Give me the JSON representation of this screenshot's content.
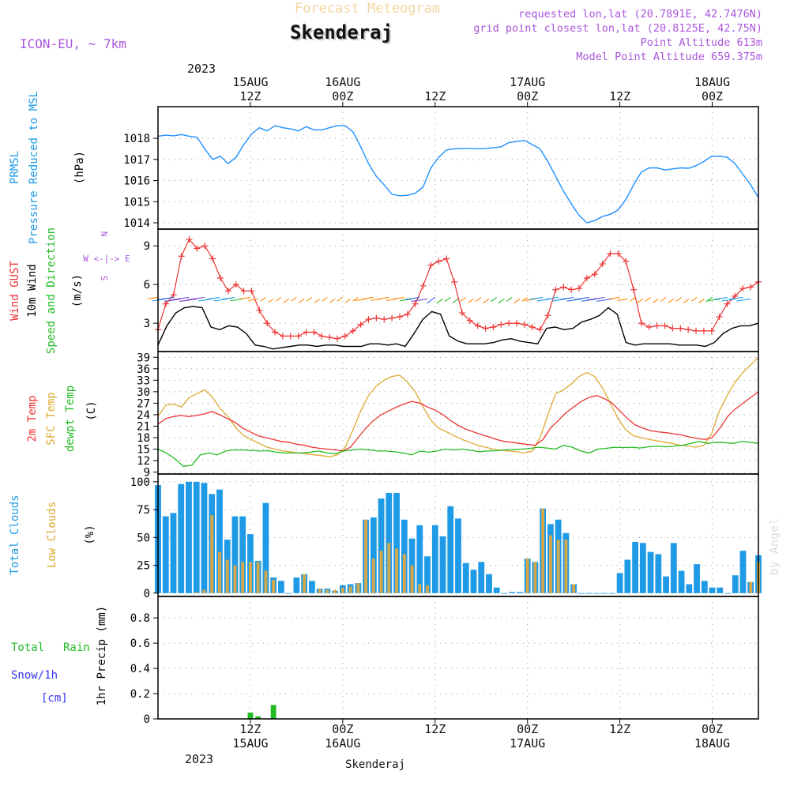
{
  "header": {
    "title": "Skenderaj",
    "faded_title": "Forecast Meteogram",
    "model": "ICON-EU, ~ 7km",
    "requested": "requested lon,lat (20.7891E, 42.7476N)",
    "grid_point": "grid point closest lon,lat (20.8125E, 42.75N)",
    "point_altitude": "Point Altitude 613m",
    "model_altitude": "Model Point Altitude 659.375m"
  },
  "footer": {
    "station": "Skenderaj",
    "watermark": "by Angel"
  },
  "time_axis": {
    "year": "2023",
    "ticks": [
      {
        "hour": 12,
        "top": [
          "15AUG",
          "12Z"
        ],
        "bottom": [
          "12Z",
          "15AUG"
        ]
      },
      {
        "hour": 24,
        "top": [
          "16AUG",
          "00Z"
        ],
        "bottom": [
          "00Z",
          "16AUG"
        ]
      },
      {
        "hour": 36,
        "top": [
          "12Z"
        ],
        "bottom": [
          "12Z"
        ]
      },
      {
        "hour": 48,
        "top": [
          "17AUG",
          "00Z"
        ],
        "bottom": [
          "00Z",
          "17AUG"
        ]
      },
      {
        "hour": 60,
        "top": [
          "12Z"
        ],
        "bottom": [
          "12Z"
        ]
      },
      {
        "hour": 72,
        "top": [
          "18AUG",
          "00Z"
        ],
        "bottom": [
          "00Z",
          "18AUG"
        ]
      }
    ]
  },
  "colors": {
    "pressure": "#1e90ff",
    "gust": "#ee3333",
    "wind": "#000000",
    "direction": "#22bb22",
    "temp2m": "#ee3333",
    "sfctemp": "#ddaa33",
    "dewpt": "#22bb22",
    "total_clouds": "#1e9ae6",
    "low_clouds": "#d4a84a",
    "rain": "#22bb22",
    "snow": "#3333ee",
    "header_meta": "#aa55dd"
  },
  "panels": {
    "pressure": {
      "labels": [
        "PRMSL",
        "Pressure Reduced to MSL"
      ],
      "unit": "(hPa)"
    },
    "wind": {
      "labels": [
        "Wind GUST",
        "10m Wind",
        "Speed and Direction"
      ],
      "unit": "(m/s)",
      "compass": "W <-|-> E",
      "compass_n": "N",
      "compass_s": "S"
    },
    "temp": {
      "labels": [
        "2m Temp",
        "SFC Temp",
        "dewpt Temp"
      ],
      "unit": "(C)"
    },
    "clouds": {
      "labels": [
        "Total Clouds",
        "Low Clouds"
      ],
      "unit": "(%)"
    },
    "precip": {
      "labels": [
        "Total",
        "Rain",
        "Snow/1h",
        "[cm]"
      ],
      "unit": "1hr Precip (mm)"
    }
  },
  "chart_data": [
    {
      "type": "line",
      "title": "PRMSL Pressure Reduced to MSL",
      "ylabel": "(hPa)",
      "ylim": [
        1013.7,
        1019.5
      ],
      "yticks": [
        1014,
        1015,
        1016,
        1017,
        1018
      ],
      "x_hours": [
        0,
        1,
        2,
        3,
        4,
        5,
        6,
        7,
        8,
        9,
        10,
        11,
        12,
        13,
        14,
        15,
        16,
        17,
        18,
        19,
        20,
        21,
        22,
        23,
        24,
        25,
        26,
        27,
        28,
        29,
        30,
        31,
        32,
        33,
        34,
        35,
        36,
        37,
        38,
        39,
        40,
        41,
        42,
        43,
        44,
        45,
        46,
        47,
        48,
        49,
        50,
        51,
        52,
        53,
        54,
        55,
        56,
        57,
        58,
        59,
        60,
        61,
        62,
        63,
        64,
        65,
        66,
        67,
        68,
        69,
        70,
        71,
        72,
        73,
        74,
        75,
        76,
        77,
        78,
        79,
        80,
        81,
        82,
        83,
        84,
        85,
        86,
        87,
        88,
        89,
        90,
        91,
        92,
        93,
        94,
        95,
        96
      ],
      "series": [
        {
          "name": "PRMSL",
          "values": [
            1018.1,
            1018.15,
            1018.12,
            1018.18,
            1018.1,
            1018.05,
            1017.5,
            1017.0,
            1017.15,
            1016.8,
            1017.1,
            1017.7,
            1018.2,
            1018.5,
            1018.35,
            1018.6,
            1018.5,
            1018.45,
            1018.35,
            1018.55,
            1018.4,
            1018.4,
            1018.5,
            1018.6,
            1018.6,
            1018.3,
            1017.6,
            1016.8,
            1016.2,
            1015.8,
            1015.35,
            1015.28,
            1015.3,
            1015.4,
            1015.7,
            1016.6,
            1017.1,
            1017.45,
            1017.5,
            1017.52,
            1017.52,
            1017.5,
            1017.52,
            1017.55,
            1017.6,
            1017.8,
            1017.85,
            1017.9,
            1017.7,
            1017.5,
            1016.9,
            1016.2,
            1015.5,
            1014.9,
            1014.35,
            1014.0,
            1014.1,
            1014.3,
            1014.4,
            1014.6,
            1015.1,
            1015.8,
            1016.4,
            1016.6,
            1016.6,
            1016.5,
            1016.55,
            1016.6,
            1016.58,
            1016.7,
            1016.9,
            1017.15,
            1017.15,
            1017.1,
            1016.8,
            1016.3,
            1015.8,
            1015.2
          ]
        }
      ]
    },
    {
      "type": "line",
      "title": "Wind GUST / 10m Wind Speed and Direction",
      "ylabel": "(m/s)",
      "ylim": [
        0.8,
        10.3
      ],
      "yticks": [
        3,
        6,
        9
      ],
      "series": [
        {
          "name": "Wind GUST",
          "values": [
            2.5,
            4.5,
            5.2,
            8.2,
            9.5,
            8.8,
            9.0,
            8.0,
            6.5,
            5.5,
            6.0,
            5.5,
            5.5,
            4.0,
            3.0,
            2.3,
            2.0,
            2.0,
            2.0,
            2.3,
            2.3,
            2.0,
            1.9,
            1.8,
            2.0,
            2.4,
            2.9,
            3.3,
            3.4,
            3.3,
            3.4,
            3.5,
            3.7,
            4.5,
            5.9,
            7.5,
            7.8,
            8.0,
            6.2,
            3.8,
            3.2,
            2.8,
            2.6,
            2.7,
            2.9,
            3.0,
            3.0,
            2.9,
            2.7,
            2.5,
            3.6,
            5.6,
            5.8,
            5.6,
            5.7,
            6.5,
            6.8,
            7.6,
            8.4,
            8.4,
            7.8,
            5.6,
            3.0,
            2.7,
            2.8,
            2.8,
            2.6,
            2.6,
            2.5,
            2.4,
            2.4,
            2.4,
            3.5,
            4.5,
            5.1,
            5.7,
            5.8,
            6.2
          ]
        },
        {
          "name": "10m Wind",
          "values": [
            1.3,
            2.8,
            3.8,
            4.2,
            4.3,
            4.2,
            2.7,
            2.5,
            2.8,
            2.7,
            2.2,
            1.3,
            1.2,
            1.0,
            1.1,
            1.2,
            1.3,
            1.3,
            1.2,
            1.3,
            1.3,
            1.2,
            1.2,
            1.2,
            1.4,
            1.4,
            1.3,
            1.4,
            1.2,
            2.2,
            3.3,
            3.9,
            3.7,
            2.0,
            1.6,
            1.4,
            1.4,
            1.4,
            1.5,
            1.7,
            1.8,
            1.6,
            1.5,
            1.4,
            2.6,
            2.7,
            2.5,
            2.6,
            3.1,
            3.3,
            3.6,
            4.2,
            3.7,
            1.5,
            1.3,
            1.4,
            1.4,
            1.4,
            1.4,
            1.3,
            1.3,
            1.3,
            1.2,
            1.5,
            2.2,
            2.6,
            2.8,
            2.8,
            3.0
          ]
        }
      ]
    },
    {
      "type": "line",
      "title": "2m Temp / SFC Temp / dewpt Temp",
      "ylabel": "(C)",
      "ylim": [
        8.5,
        40.5
      ],
      "yticks": [
        9,
        12,
        15,
        18,
        21,
        24,
        27,
        30,
        33,
        36,
        39
      ],
      "series": [
        {
          "name": "2m Temp",
          "values": [
            21.5,
            23.0,
            23.5,
            23.8,
            23.5,
            23.8,
            24.2,
            24.8,
            24.0,
            23.0,
            22.0,
            20.5,
            19.5,
            18.5,
            18.0,
            17.5,
            17.0,
            16.8,
            16.3,
            16.0,
            15.5,
            15.2,
            15.0,
            14.8,
            14.5,
            15.5,
            18.0,
            20.5,
            22.5,
            24.0,
            25.0,
            26.0,
            26.8,
            27.5,
            27.0,
            26.0,
            25.2,
            24.0,
            22.5,
            21.2,
            20.2,
            19.5,
            18.8,
            18.2,
            17.5,
            17.0,
            16.8,
            16.5,
            16.2,
            16.0,
            17.5,
            20.5,
            22.5,
            24.5,
            26.0,
            27.5,
            28.5,
            29.0,
            28.2,
            27.0,
            25.0,
            23.0,
            21.3,
            20.5,
            19.8,
            19.5,
            19.3,
            19.0,
            18.7,
            18.2,
            17.8,
            17.5,
            18.0,
            20.5,
            23.5,
            25.5,
            27.0,
            28.5,
            30.0
          ]
        },
        {
          "name": "SFC Temp",
          "values": [
            23.5,
            26.5,
            26.8,
            26.0,
            28.5,
            29.5,
            30.5,
            28.5,
            25.5,
            23.5,
            20.5,
            18.5,
            17.5,
            16.5,
            15.5,
            15.0,
            14.5,
            14.3,
            14.0,
            13.8,
            13.5,
            13.3,
            13.0,
            13.5,
            15.5,
            20.0,
            25.0,
            29.0,
            31.5,
            33.0,
            34.0,
            34.3,
            32.5,
            30.0,
            26.0,
            22.5,
            20.5,
            19.5,
            18.5,
            17.5,
            16.8,
            16.0,
            15.5,
            15.0,
            14.7,
            14.5,
            14.3,
            14.0,
            14.5,
            18.0,
            24.0,
            29.5,
            30.5,
            32.0,
            34.0,
            35.0,
            34.0,
            31.0,
            27.0,
            23.0,
            20.0,
            18.5,
            18.0,
            17.5,
            17.2,
            16.8,
            16.5,
            16.0,
            15.8,
            15.5,
            16.0,
            19.0,
            25.0,
            29.0,
            32.5,
            35.0,
            37.0,
            39.0
          ]
        },
        {
          "name": "dewpt Temp",
          "values": [
            15.0,
            14.0,
            12.5,
            10.5,
            10.8,
            13.5,
            14.0,
            13.5,
            14.5,
            14.8,
            14.8,
            14.7,
            14.5,
            14.6,
            14.2,
            14.0,
            14.0,
            14.0,
            14.2,
            14.5,
            14.0,
            13.8,
            14.5,
            14.8,
            15.0,
            14.8,
            14.5,
            14.5,
            14.3,
            14.0,
            13.5,
            14.5,
            14.2,
            14.5,
            15.0,
            14.8,
            15.0,
            14.7,
            14.3,
            14.5,
            14.6,
            14.8,
            14.9,
            15.0,
            15.2,
            15.5,
            15.3,
            15.0,
            16.0,
            15.5,
            14.5,
            14.0,
            15.0,
            15.2,
            15.5,
            15.4,
            15.5,
            15.3,
            15.6,
            15.8,
            15.6,
            15.8,
            16.0,
            16.5,
            17.0,
            16.5,
            16.8,
            16.7,
            16.5,
            17.0,
            16.8,
            16.5
          ]
        }
      ]
    },
    {
      "type": "bar",
      "title": "Total Clouds / Low Clouds",
      "ylabel": "(%)",
      "ylim": [
        -3,
        107
      ],
      "yticks": [
        0,
        25,
        50,
        75,
        100
      ],
      "x_start": 0,
      "x_step": 1,
      "series": [
        {
          "name": "Total Clouds",
          "values": [
            97,
            69,
            72,
            98,
            100,
            100,
            99,
            89,
            93,
            48,
            69,
            69,
            53,
            29,
            81,
            14,
            11,
            0,
            14,
            17,
            11,
            4,
            4,
            2,
            7,
            8,
            9,
            66,
            68,
            85,
            90,
            90,
            66,
            49,
            61,
            33,
            61,
            51,
            78,
            67,
            27,
            21,
            28,
            17,
            5,
            0,
            1,
            1,
            31,
            28,
            76,
            62,
            66,
            54,
            8,
            0,
            0,
            0,
            0,
            0,
            18,
            30,
            46,
            45,
            37,
            35,
            15,
            45,
            20,
            8,
            26,
            11,
            5,
            5,
            0,
            16,
            38,
            10,
            34
          ]
        },
        {
          "name": "Low Clouds",
          "values": [
            0,
            0,
            0,
            0,
            0,
            1,
            3,
            70,
            37,
            30,
            25,
            28,
            28,
            28,
            20,
            12,
            0,
            0,
            0,
            17,
            0,
            4,
            3,
            3,
            5,
            6,
            9,
            66,
            31,
            38,
            45,
            40,
            35,
            25,
            8,
            7,
            0,
            0,
            0,
            0,
            0,
            0,
            0,
            0,
            0,
            0,
            0,
            0,
            31,
            28,
            76,
            52,
            48,
            48,
            8,
            0,
            0,
            0,
            0,
            0,
            0,
            0,
            0,
            0,
            0,
            0,
            0,
            0,
            0,
            0,
            0,
            0,
            0,
            0,
            0,
            0,
            0,
            10,
            28
          ]
        }
      ]
    },
    {
      "type": "bar",
      "title": "1hr Precip (mm)",
      "ylabel": "1hr Precip (mm)",
      "ylim": [
        0,
        0.97
      ],
      "yticks": [
        0,
        0.2,
        0.4,
        0.6,
        0.8
      ],
      "series": [
        {
          "name": "Total Rain",
          "bars": [
            {
              "x": 12,
              "value": 0.05
            },
            {
              "x": 13,
              "value": 0.02
            },
            {
              "x": 15,
              "value": 0.11
            }
          ]
        }
      ]
    }
  ]
}
